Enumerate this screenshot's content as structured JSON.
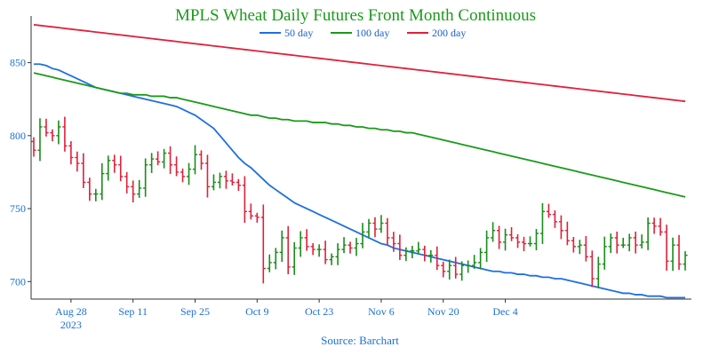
{
  "chart_data": {
    "type": "ohlc-bar-with-moving-averages",
    "title": "MPLS Wheat Daily Futures Front Month Continuous",
    "source": "Source: Barchart",
    "x_ticks": [
      "Aug 28",
      "Sep 11",
      "Sep 25",
      "Oct 9",
      "Oct 23",
      "Nov 6",
      "Nov 20",
      "Dec 4"
    ],
    "x_tick_year": "2023",
    "y_ticks": [
      700,
      750,
      800,
      850
    ],
    "ylim": [
      688,
      882
    ],
    "trading_days": 106,
    "legend_position": "top-center",
    "colors": {
      "up": "#1a8c1a",
      "down": "#e0203a",
      "ma50": "#1e6fe0",
      "ma100": "#1a9a1a",
      "ma200": "#e0203a"
    },
    "closes": [
      790,
      806,
      802,
      800,
      806,
      793,
      785,
      781,
      768,
      760,
      760,
      774,
      783,
      780,
      772,
      765,
      760,
      764,
      780,
      784,
      782,
      788,
      780,
      775,
      772,
      777,
      787,
      781,
      765,
      768,
      772,
      769,
      768,
      766,
      748,
      745,
      744,
      709,
      713,
      720,
      730,
      710,
      723,
      730,
      724,
      722,
      722,
      715,
      717,
      722,
      725,
      723,
      726,
      734,
      740,
      736,
      740,
      730,
      726,
      718,
      721,
      721,
      722,
      718,
      718,
      711,
      707,
      711,
      705,
      711,
      711,
      713,
      720,
      730,
      735,
      727,
      732,
      730,
      727,
      726,
      726,
      733,
      748,
      746,
      741,
      735,
      728,
      724,
      725,
      717,
      702,
      712,
      724,
      730,
      725,
      725,
      730,
      725,
      727,
      740,
      738,
      734,
      714,
      725,
      712,
      718
    ],
    "series": [
      {
        "name": "50 day",
        "values": [
          849,
          849,
          848,
          846,
          845,
          843,
          841,
          839,
          837,
          835,
          833,
          832,
          831,
          830,
          829,
          828,
          827,
          826,
          825,
          824,
          823,
          822,
          821,
          820,
          818,
          816,
          814,
          811,
          808,
          805,
          800,
          795,
          790,
          785,
          781,
          778,
          774,
          770,
          766,
          763,
          760,
          757,
          754,
          752,
          750,
          748,
          746,
          744,
          742,
          740,
          738,
          736,
          734,
          732,
          730,
          728,
          726,
          725,
          723,
          722,
          721,
          720,
          719,
          718,
          717,
          716,
          715,
          714,
          713,
          712,
          711,
          710,
          709,
          708,
          707,
          707,
          706,
          706,
          705,
          705,
          704,
          704,
          703,
          703,
          702,
          702,
          701,
          700,
          699,
          698,
          697,
          696,
          695,
          694,
          693,
          692,
          692,
          691,
          691,
          690,
          690,
          690,
          689,
          689,
          689,
          689
        ]
      },
      {
        "name": "100 day",
        "values": [
          843,
          842,
          841,
          840,
          839,
          838,
          837,
          836,
          835,
          834,
          833,
          832,
          831,
          830,
          829,
          829,
          828,
          828,
          828,
          827,
          827,
          827,
          826,
          826,
          825,
          824,
          823,
          822,
          821,
          820,
          819,
          818,
          817,
          816,
          815,
          814,
          814,
          813,
          812,
          812,
          811,
          811,
          810,
          810,
          810,
          809,
          809,
          809,
          808,
          808,
          807,
          807,
          806,
          806,
          805,
          805,
          804,
          804,
          803,
          803,
          802,
          802,
          801,
          800,
          799,
          798,
          797,
          796,
          795,
          794,
          793,
          792,
          791,
          790,
          789,
          788,
          787,
          786,
          785,
          784,
          783,
          782,
          781,
          780,
          779,
          778,
          777,
          776,
          775,
          774,
          773,
          772,
          771,
          770,
          769,
          768,
          767,
          766,
          765,
          764,
          763,
          762,
          761,
          760,
          759,
          758
        ]
      },
      {
        "name": "200 day",
        "values": [
          876,
          875.5,
          875,
          874.5,
          874,
          873.5,
          873,
          872.5,
          872,
          871.5,
          871,
          870.5,
          870,
          869.5,
          869,
          868.5,
          868,
          867.5,
          867,
          866.5,
          866,
          865.5,
          865,
          864.5,
          864,
          863.5,
          863,
          862.5,
          862,
          861.5,
          861,
          860.5,
          860,
          859.5,
          859,
          858.5,
          858,
          857.5,
          857,
          856.5,
          856,
          855.5,
          855,
          854.5,
          854,
          853.5,
          853,
          852.5,
          852,
          851.5,
          851,
          850.5,
          850,
          849.5,
          849,
          848.5,
          848,
          847.5,
          847,
          846.5,
          846,
          845.5,
          845,
          844.5,
          844,
          843.5,
          843,
          842.5,
          842,
          841.5,
          841,
          840.5,
          840,
          839.5,
          839,
          838.5,
          838,
          837.5,
          837,
          836.5,
          836,
          835.5,
          835,
          834.5,
          834,
          833.5,
          833,
          832.5,
          832,
          831.5,
          831,
          830.5,
          830,
          829.5,
          829,
          828.5,
          828,
          827.5,
          827,
          826.5,
          826,
          825.5,
          825,
          824.5,
          824,
          823.5
        ]
      }
    ]
  }
}
